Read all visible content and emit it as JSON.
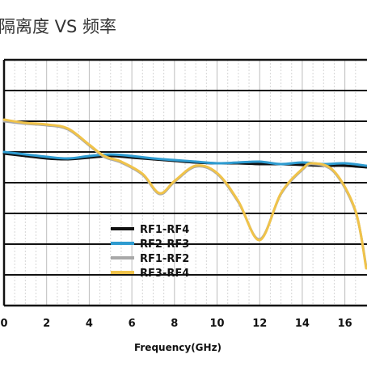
{
  "chart_data": {
    "type": "line",
    "title": "隔离度 VS 频率",
    "xlabel": "Frequency(GHz)",
    "ylabel": "",
    "xlim": [
      0,
      17
    ],
    "x_ticks": [
      "0",
      "2",
      "4",
      "6",
      "8",
      "10",
      "12",
      "14",
      "16"
    ],
    "grid": true,
    "legend_position": "center-left",
    "series": [
      {
        "name": "RF1-RF4",
        "color": "#111111",
        "points": [
          [
            0,
            190
          ],
          [
            1,
            193
          ],
          [
            2,
            196
          ],
          [
            3,
            197
          ],
          [
            4,
            195
          ],
          [
            5,
            193
          ],
          [
            6,
            195
          ],
          [
            7,
            197
          ],
          [
            8,
            199
          ],
          [
            9,
            201
          ],
          [
            10,
            202
          ],
          [
            11,
            202
          ],
          [
            12,
            203
          ],
          [
            13,
            203
          ],
          [
            14,
            204
          ],
          [
            15,
            205
          ],
          [
            16,
            205
          ],
          [
            17,
            207
          ]
        ]
      },
      {
        "name": "RF2-RF3",
        "color": "#2e9bd0",
        "points": [
          [
            0,
            188
          ],
          [
            1,
            191
          ],
          [
            2,
            194
          ],
          [
            3,
            196
          ],
          [
            4,
            193
          ],
          [
            5,
            191
          ],
          [
            6,
            193
          ],
          [
            7,
            196
          ],
          [
            8,
            198
          ],
          [
            9,
            200
          ],
          [
            10,
            202
          ],
          [
            11,
            201
          ],
          [
            12,
            200
          ],
          [
            13,
            203
          ],
          [
            14,
            201
          ],
          [
            15,
            203
          ],
          [
            16,
            202
          ],
          [
            17,
            205
          ]
        ]
      },
      {
        "name": "RF1-RF2",
        "color": "#a8a8a8",
        "points": [
          [
            0,
            150
          ],
          [
            1,
            153
          ],
          [
            2,
            155
          ],
          [
            3,
            160
          ],
          [
            4,
            180
          ],
          [
            4.7,
            194
          ],
          [
            5.5,
            201
          ],
          [
            6.5,
            216
          ],
          [
            7.3,
            240
          ],
          [
            8,
            225
          ],
          [
            9,
            206
          ],
          [
            10,
            215
          ],
          [
            11,
            250
          ],
          [
            12,
            296
          ],
          [
            13,
            240
          ],
          [
            14,
            210
          ],
          [
            14.5,
            203
          ],
          [
            15.5,
            213
          ],
          [
            16.5,
            262
          ],
          [
            17,
            330
          ]
        ]
      },
      {
        "name": "RF3-RF4",
        "color": "#f0c34a",
        "points": [
          [
            0,
            148
          ],
          [
            1,
            152
          ],
          [
            2,
            154
          ],
          [
            3,
            159
          ],
          [
            4,
            179
          ],
          [
            4.7,
            193
          ],
          [
            5.5,
            200
          ],
          [
            6.5,
            215
          ],
          [
            7.3,
            239
          ],
          [
            8,
            224
          ],
          [
            9,
            205
          ],
          [
            10,
            214
          ],
          [
            11,
            249
          ],
          [
            12,
            297
          ],
          [
            13,
            239
          ],
          [
            14,
            209
          ],
          [
            14.5,
            202
          ],
          [
            15.5,
            212
          ],
          [
            16.5,
            261
          ],
          [
            17,
            332
          ]
        ]
      }
    ]
  }
}
